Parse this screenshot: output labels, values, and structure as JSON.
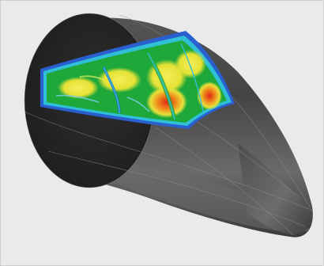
{
  "image": {
    "subject": "",
    "colors": {
      "background": "#ebebeb",
      "shell_dark": "#2a2a2a",
      "shell_mid": "#4a4a4a",
      "shell_light": "#7a7a7a",
      "end_cap": "#262626",
      "mesh_line": "#9a9a9a",
      "contour_blue": "#2a5fd0",
      "contour_cyan": "#2fc0d8",
      "contour_green": "#1fa83a",
      "contour_yellow": "#e8e63a",
      "contour_orange": "#f0a020",
      "contour_red": "#e43018"
    }
  }
}
